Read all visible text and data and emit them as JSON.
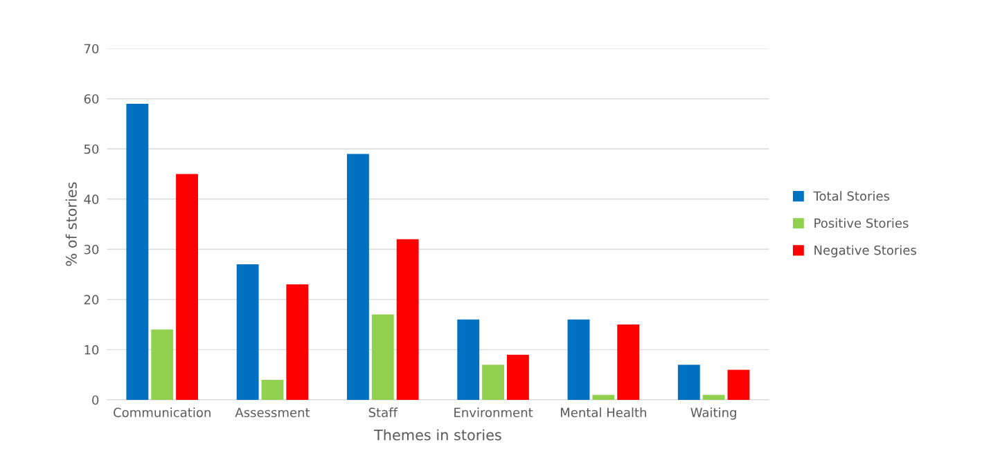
{
  "chart_data": {
    "type": "bar",
    "categories": [
      "Communication",
      "Assessment",
      "Staff",
      "Environment",
      "Mental Health",
      "Waiting"
    ],
    "series": [
      {
        "name": "Total Stories",
        "color": "#0070c0",
        "values": [
          59,
          27,
          49,
          16,
          16,
          7
        ]
      },
      {
        "name": "Positive Stories",
        "color": "#92d050",
        "values": [
          14,
          4,
          17,
          7,
          1,
          1
        ]
      },
      {
        "name": "Negative Stories",
        "color": "#ff0000",
        "values": [
          45,
          23,
          32,
          9,
          15,
          6
        ]
      }
    ],
    "xlabel": "Themes in stories",
    "ylabel": "% of stories",
    "ylim": [
      0,
      70
    ],
    "yticks": [
      0,
      10,
      20,
      30,
      40,
      50,
      60,
      70
    ],
    "grid": "y",
    "legend": "right"
  }
}
